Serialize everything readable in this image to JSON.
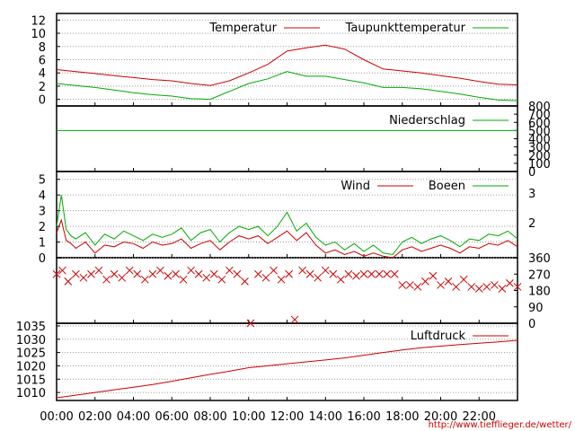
{
  "url_text": "http://www.tiefflieger.de/wetter/",
  "chart_data": [
    {
      "type": "line",
      "panel": "temperature",
      "legend_placement": "top",
      "ylim": [
        -1,
        13
      ],
      "y_ticks": [
        0,
        2,
        4,
        6,
        8,
        10,
        12
      ],
      "grid": true,
      "x_hours": [
        0,
        1,
        2,
        3,
        4,
        5,
        6,
        7,
        8,
        9,
        10,
        11,
        12,
        13,
        14,
        15,
        16,
        17,
        18,
        19,
        20,
        21,
        22,
        23,
        24
      ],
      "series": [
        {
          "name": "Temperatur",
          "color": "#cc0000",
          "values": [
            4.5,
            4.2,
            3.9,
            3.6,
            3.3,
            3.0,
            2.8,
            2.4,
            2.1,
            2.8,
            4.0,
            5.3,
            7.3,
            7.8,
            8.2,
            7.6,
            6.0,
            4.6,
            4.3,
            4.0,
            3.6,
            3.2,
            2.7,
            2.3,
            2.2
          ]
        },
        {
          "name": "Taupunkttemperatur",
          "color": "#00aa00",
          "values": [
            2.4,
            2.1,
            1.8,
            1.4,
            1.0,
            0.7,
            0.5,
            0.1,
            0.0,
            1.2,
            2.4,
            3.1,
            4.2,
            3.5,
            3.5,
            3.0,
            2.5,
            1.8,
            1.8,
            1.6,
            1.2,
            0.8,
            0.3,
            -0.1,
            -0.2
          ]
        }
      ]
    },
    {
      "type": "line",
      "panel": "precipitation",
      "legend_placement": "top",
      "ylim": [
        0,
        800
      ],
      "y_ticks_right": [
        0,
        100,
        200,
        300,
        400,
        500,
        600,
        700,
        800
      ],
      "series": [
        {
          "name": "Niederschlag",
          "color": "#00aa00",
          "values": [
            500,
            500
          ]
        }
      ]
    },
    {
      "type": "line",
      "panel": "wind",
      "legend_placement": "top",
      "ylim": [
        0,
        5.5
      ],
      "y_ticks": [
        0,
        1,
        2,
        3,
        4,
        5
      ],
      "y_ticks_right_labels": [
        "2",
        "3"
      ],
      "grid": true,
      "x_hours": [
        0,
        0.25,
        0.5,
        0.75,
        1,
        1.5,
        2,
        2.5,
        3,
        3.5,
        4,
        4.5,
        5,
        5.5,
        6,
        6.5,
        7,
        7.5,
        8,
        8.5,
        9,
        9.5,
        10,
        10.5,
        11,
        11.5,
        12,
        12.5,
        13,
        13.5,
        14,
        14.5,
        15,
        15.5,
        16,
        16.5,
        17,
        17.5,
        18,
        18.5,
        19,
        19.5,
        20,
        20.5,
        21,
        21.5,
        22,
        22.5,
        23,
        23.5,
        24
      ],
      "series": [
        {
          "name": "Wind",
          "color": "#cc0000",
          "values": [
            1.6,
            2.4,
            1.1,
            0.9,
            0.6,
            1.0,
            0.3,
            0.8,
            0.7,
            1.0,
            0.9,
            0.6,
            1.0,
            0.8,
            0.9,
            1.2,
            0.6,
            0.9,
            1.1,
            0.5,
            1.0,
            1.4,
            1.2,
            1.4,
            0.9,
            1.3,
            1.7,
            1.1,
            1.6,
            0.8,
            0.3,
            0.5,
            0.2,
            0.4,
            0.1,
            0.3,
            0.1,
            0.0,
            0.5,
            0.7,
            0.4,
            0.6,
            0.8,
            0.6,
            0.3,
            0.7,
            0.6,
            0.9,
            0.8,
            1.1,
            0.7
          ]
        },
        {
          "name": "Boeen",
          "color": "#00aa00",
          "values": [
            2.0,
            4.0,
            1.8,
            1.4,
            1.2,
            1.6,
            0.8,
            1.5,
            1.2,
            1.7,
            1.4,
            1.1,
            1.5,
            1.3,
            1.5,
            1.9,
            1.1,
            1.6,
            1.8,
            1.0,
            1.6,
            2.0,
            1.8,
            2.0,
            1.4,
            2.0,
            2.9,
            1.7,
            2.2,
            1.3,
            0.8,
            1.0,
            0.5,
            0.9,
            0.4,
            0.8,
            0.3,
            0.2,
            1.0,
            1.3,
            0.9,
            1.2,
            1.4,
            1.1,
            0.7,
            1.2,
            1.1,
            1.5,
            1.4,
            1.7,
            1.2
          ]
        }
      ]
    },
    {
      "type": "scatter",
      "panel": "wind_direction",
      "ylim": [
        0,
        360
      ],
      "y_ticks_right": [
        0,
        90,
        180,
        270,
        360
      ],
      "marker": "x",
      "color": "#cc0000",
      "x_hours": [
        0,
        0.3,
        0.6,
        1.0,
        1.4,
        1.8,
        2.2,
        2.6,
        3.0,
        3.4,
        3.8,
        4.2,
        4.6,
        5.0,
        5.4,
        5.8,
        6.2,
        6.6,
        7.0,
        7.4,
        7.8,
        8.2,
        8.6,
        9.0,
        9.4,
        9.8,
        10.1,
        10.5,
        10.9,
        11.3,
        11.7,
        12.1,
        12.4,
        12.8,
        13.2,
        13.6,
        14.0,
        14.4,
        14.8,
        15.2,
        15.6,
        16.0,
        16.4,
        16.8,
        17.2,
        17.6,
        18.0,
        18.4,
        18.8,
        19.2,
        19.6,
        20.0,
        20.4,
        20.8,
        21.2,
        21.6,
        22.0,
        22.4,
        22.8,
        23.2,
        23.6,
        24.0
      ],
      "values": [
        270,
        290,
        230,
        270,
        250,
        270,
        290,
        240,
        270,
        250,
        290,
        270,
        240,
        270,
        290,
        260,
        270,
        240,
        290,
        270,
        250,
        270,
        240,
        290,
        270,
        230,
        0,
        270,
        250,
        290,
        240,
        270,
        20,
        290,
        270,
        250,
        290,
        270,
        240,
        270,
        260,
        270,
        270,
        270,
        270,
        270,
        210,
        210,
        200,
        230,
        260,
        210,
        230,
        200,
        240,
        200,
        190,
        200,
        210,
        190,
        220,
        200
      ]
    },
    {
      "type": "line",
      "panel": "pressure",
      "legend_placement": "top",
      "ylim": [
        1007,
        1036
      ],
      "y_ticks": [
        1010,
        1015,
        1020,
        1025,
        1030,
        1035
      ],
      "grid": true,
      "x_hours": [
        0,
        1,
        2,
        3,
        4,
        5,
        6,
        7,
        8,
        9,
        10,
        11,
        12,
        13,
        14,
        15,
        16,
        17,
        18,
        19,
        20,
        21,
        22,
        23,
        24
      ],
      "series": [
        {
          "name": "Luftdruck",
          "color": "#cc0000",
          "values": [
            1008.0,
            1009.0,
            1010.0,
            1011.0,
            1012.0,
            1013.0,
            1014.2,
            1015.5,
            1016.8,
            1018.0,
            1019.3,
            1020.0,
            1020.8,
            1021.5,
            1022.2,
            1023.0,
            1024.0,
            1025.0,
            1026.0,
            1026.8,
            1027.4,
            1028.0,
            1028.5,
            1029.0,
            1029.6
          ]
        }
      ]
    }
  ],
  "x_axis": {
    "range_hours": [
      0,
      24
    ],
    "tick_labels": [
      "00:00",
      "02:00",
      "04:00",
      "06:00",
      "08:00",
      "10:00",
      "12:00",
      "14:00",
      "16:00",
      "18:00",
      "20:00",
      "22:00"
    ]
  }
}
